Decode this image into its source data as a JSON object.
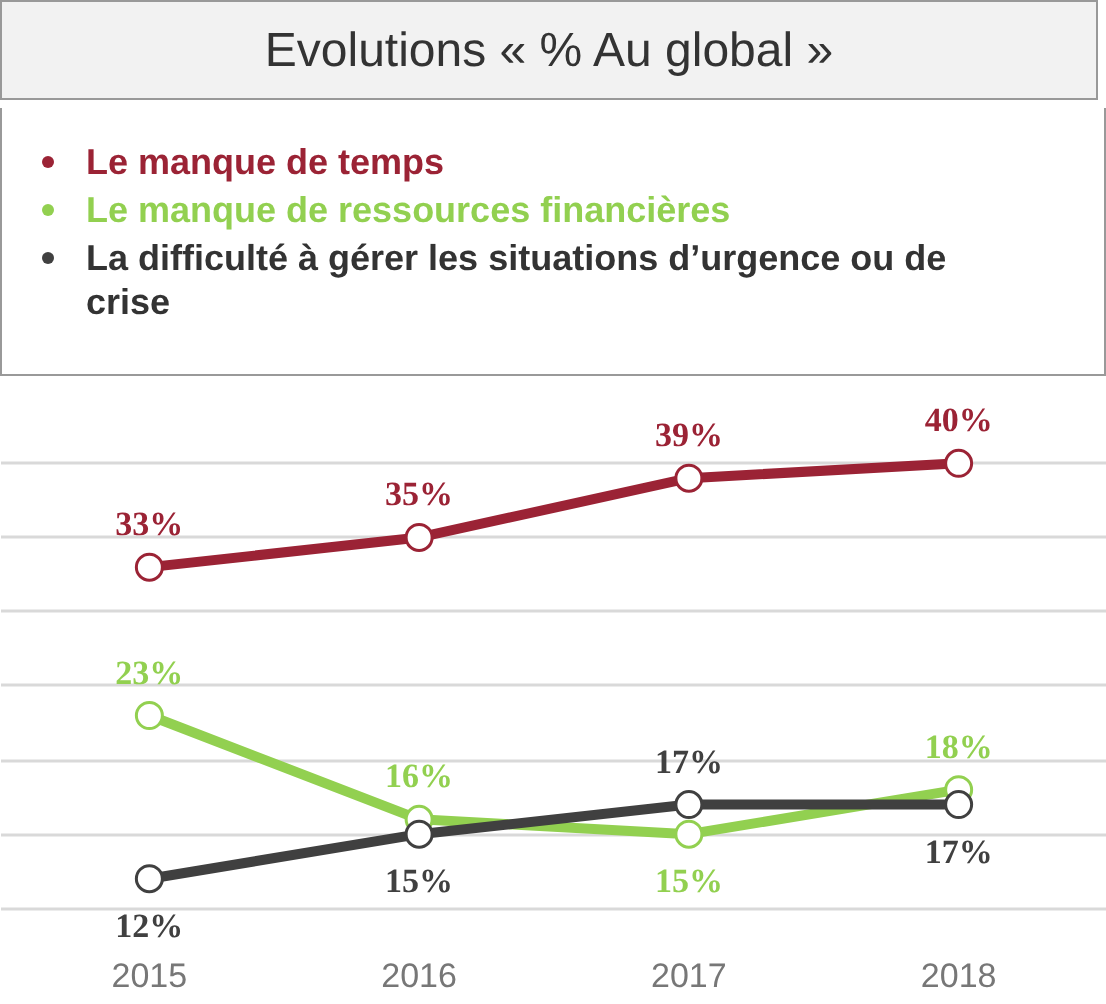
{
  "chart_data": {
    "type": "line",
    "title": "Evolutions « % Au global »",
    "categories": [
      "2015",
      "2016",
      "2017",
      "2018"
    ],
    "series": [
      {
        "name": "Le manque de temps",
        "color": "#9b2335",
        "values": [
          33,
          35,
          39,
          40
        ],
        "value_labels": [
          "33%",
          "35%",
          "39%",
          "40%"
        ]
      },
      {
        "name": "Le manque de ressources financières",
        "color": "#92d050",
        "values": [
          23,
          16,
          15,
          18
        ],
        "value_labels": [
          "23%",
          "16%",
          "15%",
          "18%"
        ]
      },
      {
        "name": "La difficulté à gérer les situations d’urgence ou de crise",
        "color": "#404040",
        "values": [
          12,
          15,
          17,
          17
        ],
        "value_labels": [
          "12%",
          "15%",
          "17%",
          "17%"
        ]
      }
    ],
    "tick_labels": "x",
    "grid": "y",
    "legend": "top",
    "marker": "circle"
  }
}
